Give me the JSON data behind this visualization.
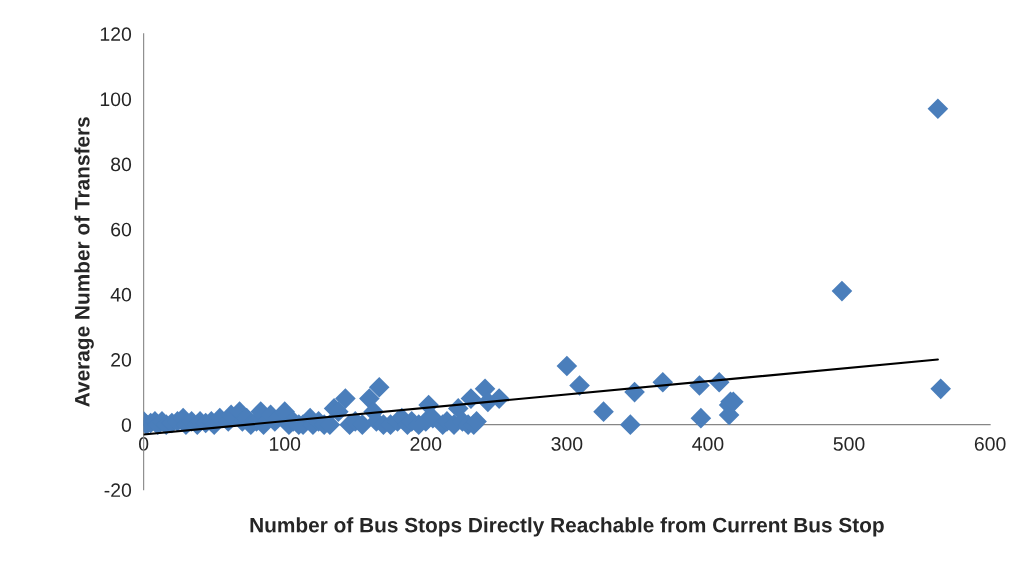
{
  "chart_data": {
    "type": "scatter",
    "xlabel": "Number of Bus Stops Directly Reachable from Current Bus Stop",
    "ylabel": "Average Number of Transfers",
    "xlim": [
      0,
      600
    ],
    "ylim": [
      -20,
      120
    ],
    "xticks": [
      0,
      100,
      200,
      300,
      400,
      500,
      600
    ],
    "yticks": [
      -20,
      0,
      20,
      40,
      60,
      80,
      100,
      120
    ],
    "grid": false,
    "marker": "diamond",
    "series": [
      {
        "color": "#4a7ebb",
        "x": [
          0,
          2,
          5,
          8,
          10,
          13,
          16,
          20,
          24,
          28,
          30,
          34,
          38,
          40,
          44,
          48,
          50,
          54,
          60,
          62,
          68,
          70,
          73,
          76,
          80,
          83,
          85,
          90,
          93,
          100,
          103,
          106,
          110,
          113,
          118,
          120,
          124,
          128,
          132,
          135,
          138,
          143,
          146,
          150,
          155,
          160,
          163,
          165,
          167,
          170,
          175,
          180,
          183,
          187,
          190,
          195,
          200,
          202,
          205,
          212,
          215,
          220,
          223,
          226,
          230,
          232,
          234,
          236,
          242,
          244,
          252,
          300,
          309,
          326,
          345,
          348,
          368,
          394,
          395,
          408,
          415,
          415,
          416,
          418,
          495,
          563,
          565
        ],
        "values": [
          1,
          0,
          0.5,
          1,
          0,
          1,
          0,
          0.5,
          1,
          2,
          0,
          1,
          0,
          1,
          0.5,
          1,
          0,
          2,
          1,
          3,
          4,
          1,
          2,
          0,
          1,
          4,
          0,
          3,
          1,
          4,
          0,
          1,
          0,
          0,
          2,
          0,
          1,
          0,
          0,
          5,
          4,
          8,
          0,
          1,
          0,
          8,
          4,
          1,
          11.5,
          0,
          0,
          1,
          2,
          0,
          1,
          0,
          1,
          6,
          2,
          0,
          1,
          0,
          5,
          1,
          0,
          8,
          0,
          1,
          11,
          7,
          8,
          18,
          12,
          4,
          0,
          10,
          13,
          12,
          2,
          13,
          3,
          6,
          7,
          7,
          41,
          97,
          11
        ]
      },
      {
        "type": "line",
        "color": "#000000",
        "marker": "none",
        "line_style": "solid",
        "x": [
          0,
          563
        ],
        "values": [
          -3,
          20
        ]
      }
    ]
  }
}
